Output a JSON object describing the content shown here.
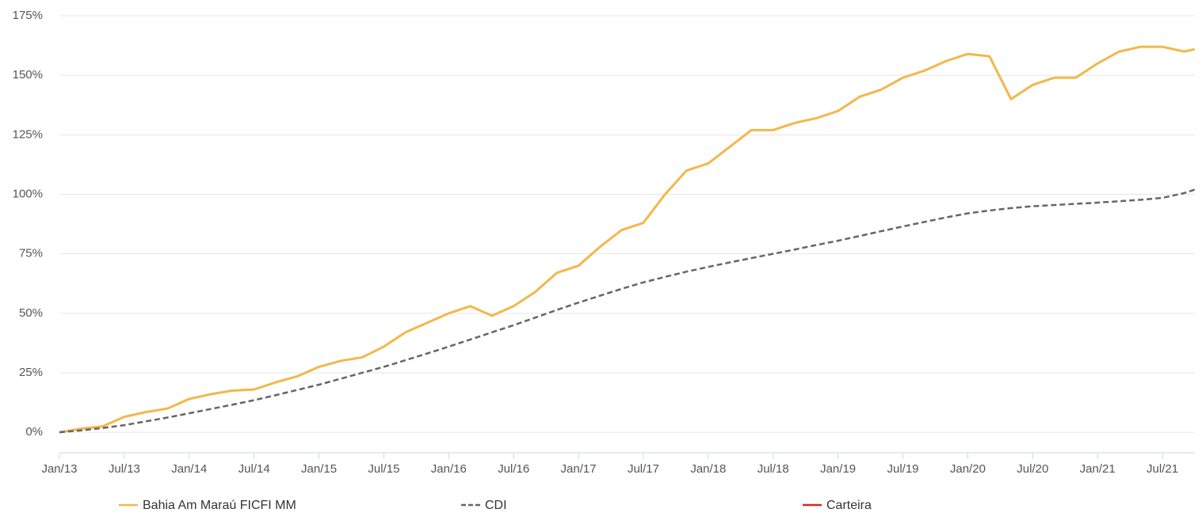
{
  "chart_data": {
    "type": "line",
    "x": [
      2013,
      2013.167,
      2013.333,
      2013.5,
      2013.667,
      2013.833,
      2014,
      2014.167,
      2014.333,
      2014.5,
      2014.667,
      2014.833,
      2015,
      2015.167,
      2015.333,
      2015.5,
      2015.667,
      2015.833,
      2016,
      2016.167,
      2016.333,
      2016.5,
      2016.667,
      2016.833,
      2017,
      2017.167,
      2017.333,
      2017.5,
      2017.667,
      2017.833,
      2018,
      2018.167,
      2018.333,
      2018.5,
      2018.667,
      2018.833,
      2019,
      2019.167,
      2019.333,
      2019.5,
      2019.667,
      2019.833,
      2020,
      2020.167,
      2020.333,
      2020.5,
      2020.667,
      2020.833,
      2021,
      2021.167,
      2021.333,
      2021.5,
      2021.667,
      2021.75
    ],
    "series": [
      {
        "name": "Bahia Am Maraú FICFI MM",
        "color": "#f2b84b",
        "dash": false,
        "values": [
          0,
          1.5,
          2.5,
          6.5,
          8.5,
          10,
          14,
          16,
          17.5,
          18,
          21,
          23.5,
          27.5,
          30,
          31.5,
          36,
          42,
          46,
          50,
          53,
          49,
          53,
          59,
          67,
          70,
          78,
          85,
          88,
          100,
          110,
          113,
          120,
          127,
          127,
          130,
          132,
          135,
          141,
          144,
          149,
          152,
          156,
          159,
          158,
          140,
          146,
          149,
          149,
          155,
          160,
          162,
          162,
          160,
          161
        ]
      },
      {
        "name": "CDI",
        "color": "#666666",
        "dash": true,
        "values": [
          0,
          0.8,
          1.8,
          3,
          4.6,
          6.2,
          8,
          9.8,
          11.6,
          13.5,
          15.6,
          17.8,
          20,
          22.5,
          25,
          27.5,
          30.3,
          33.1,
          36,
          39,
          42,
          45,
          48.2,
          51.4,
          54.5,
          57.4,
          60.3,
          63,
          65.3,
          67.5,
          69.5,
          71.4,
          73.2,
          75,
          76.8,
          78.7,
          80.5,
          82.5,
          84.5,
          86.5,
          88.4,
          90.3,
          92,
          93.2,
          94.2,
          95,
          95.5,
          96,
          96.5,
          97.1,
          97.7,
          98.5,
          100.5,
          102
        ]
      },
      {
        "name": "Carteira",
        "color": "#d62728",
        "dash": false,
        "values": [
          null,
          null,
          null,
          null,
          null,
          null,
          null,
          null,
          null,
          null,
          null,
          null,
          null,
          null,
          null,
          null,
          null,
          null,
          null,
          null,
          null,
          null,
          null,
          null,
          null,
          null,
          null,
          null,
          null,
          null,
          null,
          null,
          null,
          null,
          null,
          null,
          null,
          null,
          null,
          null,
          null,
          null,
          null,
          null,
          null,
          null,
          null,
          null,
          null,
          null,
          null,
          null,
          null,
          null
        ]
      }
    ],
    "xlim": [
      2013,
      2021.75
    ],
    "xticks": [
      {
        "value": 2013,
        "label": "Jan/13"
      },
      {
        "value": 2013.5,
        "label": "Jul/13"
      },
      {
        "value": 2014,
        "label": "Jan/14"
      },
      {
        "value": 2014.5,
        "label": "Jul/14"
      },
      {
        "value": 2015,
        "label": "Jan/15"
      },
      {
        "value": 2015.5,
        "label": "Jul/15"
      },
      {
        "value": 2016,
        "label": "Jan/16"
      },
      {
        "value": 2016.5,
        "label": "Jul/16"
      },
      {
        "value": 2017,
        "label": "Jan/17"
      },
      {
        "value": 2017.5,
        "label": "Jul/17"
      },
      {
        "value": 2018,
        "label": "Jan/18"
      },
      {
        "value": 2018.5,
        "label": "Jul/18"
      },
      {
        "value": 2019,
        "label": "Jan/19"
      },
      {
        "value": 2019.5,
        "label": "Jul/19"
      },
      {
        "value": 2020,
        "label": "Jan/20"
      },
      {
        "value": 2020.5,
        "label": "Jul/20"
      },
      {
        "value": 2021,
        "label": "Jan/21"
      },
      {
        "value": 2021.5,
        "label": "Jul/21"
      }
    ],
    "ylim": [
      -8.6,
      175
    ],
    "yticks": [
      {
        "value": 0,
        "label": "0%"
      },
      {
        "value": 25,
        "label": "25%"
      },
      {
        "value": 50,
        "label": "50%"
      },
      {
        "value": 75,
        "label": "75%"
      },
      {
        "value": 100,
        "label": "100%"
      },
      {
        "value": 125,
        "label": "125%"
      },
      {
        "value": 150,
        "label": "150%"
      },
      {
        "value": 175,
        "label": "175%"
      }
    ],
    "grid": true
  }
}
